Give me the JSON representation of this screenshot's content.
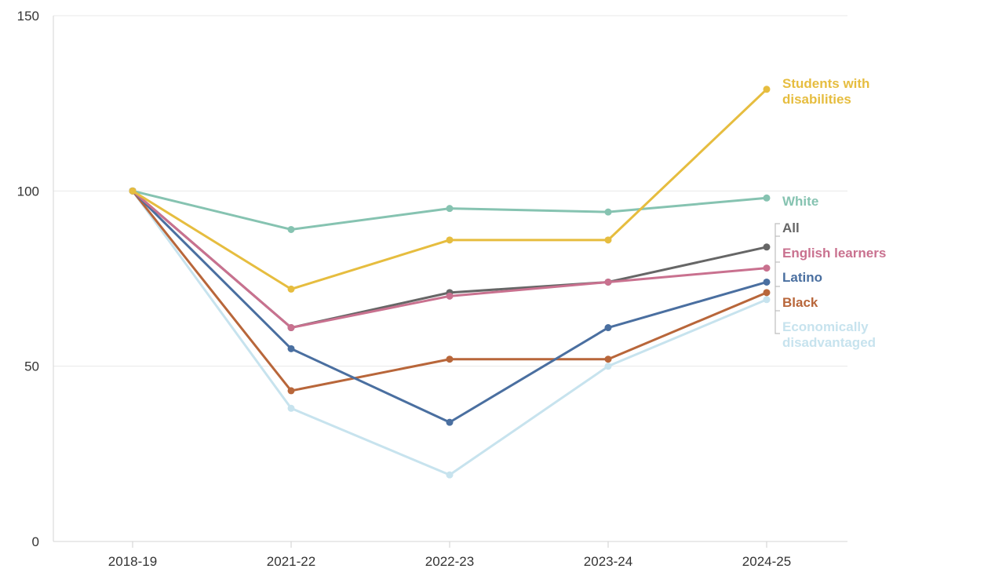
{
  "chart_data": {
    "type": "line",
    "title": "",
    "xlabel": "",
    "ylabel": "",
    "ylim": [
      0,
      150
    ],
    "yticks": [
      0,
      50,
      100,
      150
    ],
    "grid": true,
    "legend": "direct labels at right",
    "categories": [
      "2018-19",
      "2021-22",
      "2022-23",
      "2023-24",
      "2024-25"
    ],
    "series": [
      {
        "key": "econ",
        "name": "Economically disadvantaged",
        "label_lines": [
          "Economically",
          "disadvantaged"
        ],
        "color": "#c7e3ee",
        "values": [
          100,
          38,
          19,
          50,
          69
        ]
      },
      {
        "key": "black",
        "name": "Black",
        "label_lines": [
          "Black"
        ],
        "color": "#b8663a",
        "values": [
          100,
          43,
          52,
          52,
          71
        ]
      },
      {
        "key": "latino",
        "name": "Latino",
        "label_lines": [
          "Latino"
        ],
        "color": "#4a6fa0",
        "values": [
          100,
          55,
          34,
          61,
          74
        ]
      },
      {
        "key": "all",
        "name": "All",
        "label_lines": [
          "All"
        ],
        "color": "#666666",
        "values": [
          100,
          61,
          71,
          74,
          84
        ]
      },
      {
        "key": "ell",
        "name": "English learners",
        "label_lines": [
          "English learners"
        ],
        "color": "#c9718f",
        "values": [
          100,
          61,
          70,
          74,
          78
        ]
      },
      {
        "key": "white",
        "name": "White",
        "label_lines": [
          "White"
        ],
        "color": "#86c3b1",
        "values": [
          100,
          89,
          95,
          94,
          98
        ]
      },
      {
        "key": "swd",
        "name": "Students with disabilities",
        "label_lines": [
          "Students with",
          "disabilities"
        ],
        "color": "#e6bd3f",
        "values": [
          100,
          72,
          86,
          86,
          129
        ]
      }
    ]
  }
}
